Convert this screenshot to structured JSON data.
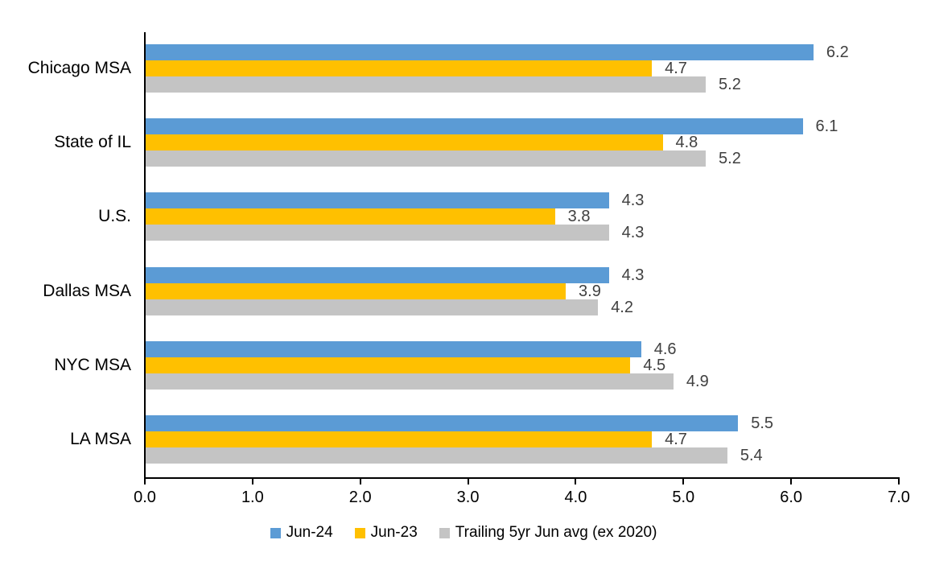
{
  "chart_data": {
    "type": "bar",
    "orientation": "horizontal",
    "title": "",
    "xlabel": "",
    "ylabel": "",
    "categories": [
      "Chicago MSA",
      "State of IL",
      "U.S.",
      "Dallas MSA",
      "NYC MSA",
      "LA MSA"
    ],
    "series": [
      {
        "name": "Jun-24",
        "color": "#5B9BD5",
        "values": [
          6.2,
          6.1,
          4.3,
          4.3,
          4.6,
          5.5
        ]
      },
      {
        "name": "Jun-23",
        "color": "#FFC000",
        "values": [
          4.7,
          4.8,
          3.8,
          3.9,
          4.5,
          4.7
        ]
      },
      {
        "name": "Trailing 5yr Jun avg (ex 2020)",
        "color": "#C4C4C4",
        "values": [
          5.2,
          5.2,
          4.3,
          4.2,
          4.9,
          5.4
        ]
      }
    ],
    "xlim": [
      0,
      7
    ],
    "x_ticks": [
      "0.0",
      "1.0",
      "2.0",
      "3.0",
      "4.0",
      "5.0",
      "6.0",
      "7.0"
    ],
    "value_label_decimals": 1,
    "grid": false,
    "legend_position": "bottom"
  },
  "styles": {
    "value_label_color": "#404040",
    "axis_color": "#000000",
    "background": "#ffffff"
  }
}
